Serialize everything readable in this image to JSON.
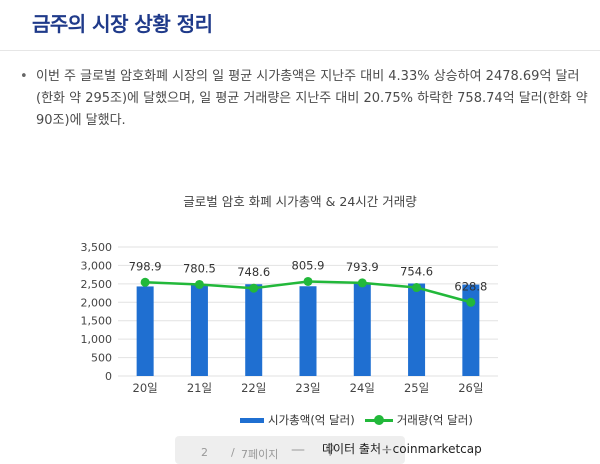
{
  "page": {
    "title": "금주의 시장 상황 정리",
    "bullet": "•",
    "summary": "이번 주 글로벌 암호화폐 시장의 일 평균 시가총액은 지난주 대비 4.33% 상승하여 2478.69억 달러(한화 약 295조)에 달했으며, 일 평균 거래량은 지난주 대비 20.75% 하락한 758.74억 달러(한화 약 90조)에 달했다.",
    "source": "데이터 출처 : coinmarketcap"
  },
  "toolbar": {
    "page_number": "2",
    "separator": "/",
    "page_label": "7페이지",
    "minus": "—",
    "zoom": "⚲",
    "plus": "+"
  },
  "chart_data": {
    "type": "bar",
    "title": "글로벌 암호 화폐 시가총액 & 24시간 거래량",
    "categories": [
      "20일",
      "21일",
      "22일",
      "23일",
      "24일",
      "25일",
      "26일"
    ],
    "series": [
      {
        "name": "시가총액(억 달러)",
        "type": "bar",
        "color": "#1f6fd1",
        "values": [
          2430,
          2480,
          2490,
          2435,
          2530,
          2510,
          2480
        ]
      },
      {
        "name": "거래량(억 달러)",
        "type": "line",
        "color": "#22b83a",
        "values": [
          798.9,
          780.5,
          748.6,
          805.9,
          793.9,
          754.6,
          628.8
        ],
        "labels": [
          "798.9",
          "780.5",
          "748.6",
          "805.9",
          "793.9",
          "754.6",
          "628.8"
        ]
      }
    ],
    "y_ticks": [
      "0",
      "500",
      "1,000",
      "1,500",
      "2,000",
      "2,500",
      "3,000",
      "3,500"
    ],
    "ylim": [
      0,
      3500
    ],
    "line_mapping": [
      0,
      3500,
      0,
      1100
    ],
    "grid": true,
    "legend": "bottom"
  }
}
